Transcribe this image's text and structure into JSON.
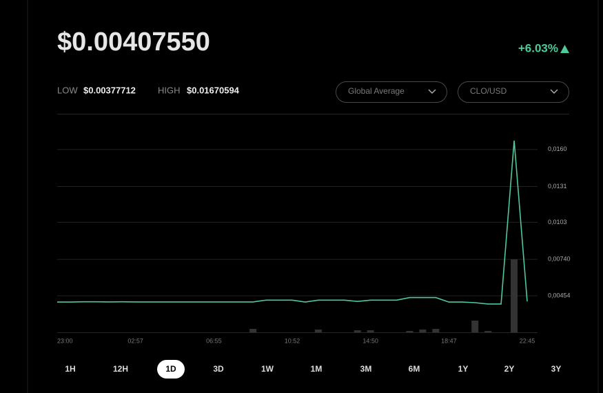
{
  "header": {
    "price": "$0.00407550",
    "change": "+6.03%",
    "low_label": "LOW",
    "low": "$0.00377712",
    "high_label": "HIGH",
    "high": "$0.01670594"
  },
  "dropdowns": [
    "Global Average",
    "CLO/USD"
  ],
  "chart": {
    "type": "line",
    "color": "#4fc99a",
    "volume_color": "#333333",
    "ylim": [
      0.00168,
      0.0188
    ],
    "yticks": [
      {
        "value": 0.016,
        "label": "0,0160"
      },
      {
        "value": 0.0131,
        "label": "0,0131"
      },
      {
        "value": 0.0103,
        "label": "0,0103"
      },
      {
        "value": 0.0074,
        "label": "0,00740"
      },
      {
        "value": 0.00454,
        "label": "0,00454"
      }
    ],
    "grid": true,
    "x_tick_labels": [
      "23:00",
      "02:57",
      "06:55",
      "10:52",
      "14:50",
      "18:47",
      "22:45"
    ],
    "values": [
      0.00405,
      0.00405,
      0.00407,
      0.00407,
      0.00406,
      0.00407,
      0.00406,
      0.00406,
      0.00406,
      0.00406,
      0.00406,
      0.00406,
      0.00406,
      0.00406,
      0.00406,
      0.00406,
      0.0042,
      0.0042,
      0.0042,
      0.00405,
      0.0042,
      0.0042,
      0.0042,
      0.0041,
      0.0042,
      0.0042,
      0.0042,
      0.0044,
      0.0044,
      0.0044,
      0.00405,
      0.00405,
      0.004,
      0.0039,
      0.0039,
      0.0167,
      0.0041
    ],
    "volume": [
      null,
      null,
      null,
      null,
      null,
      null,
      null,
      null,
      null,
      null,
      null,
      null,
      null,
      null,
      null,
      0.00195,
      null,
      null,
      null,
      null,
      0.0019,
      null,
      null,
      0.00184,
      0.00184,
      null,
      null,
      0.00179,
      0.0019,
      0.00195,
      null,
      null,
      0.0026,
      0.00179,
      null,
      0.0074,
      null
    ]
  },
  "ranges": [
    "1H",
    "12H",
    "1D",
    "3D",
    "1W",
    "1M",
    "3M",
    "6M",
    "1Y",
    "2Y",
    "3Y"
  ],
  "selected_range": 2
}
